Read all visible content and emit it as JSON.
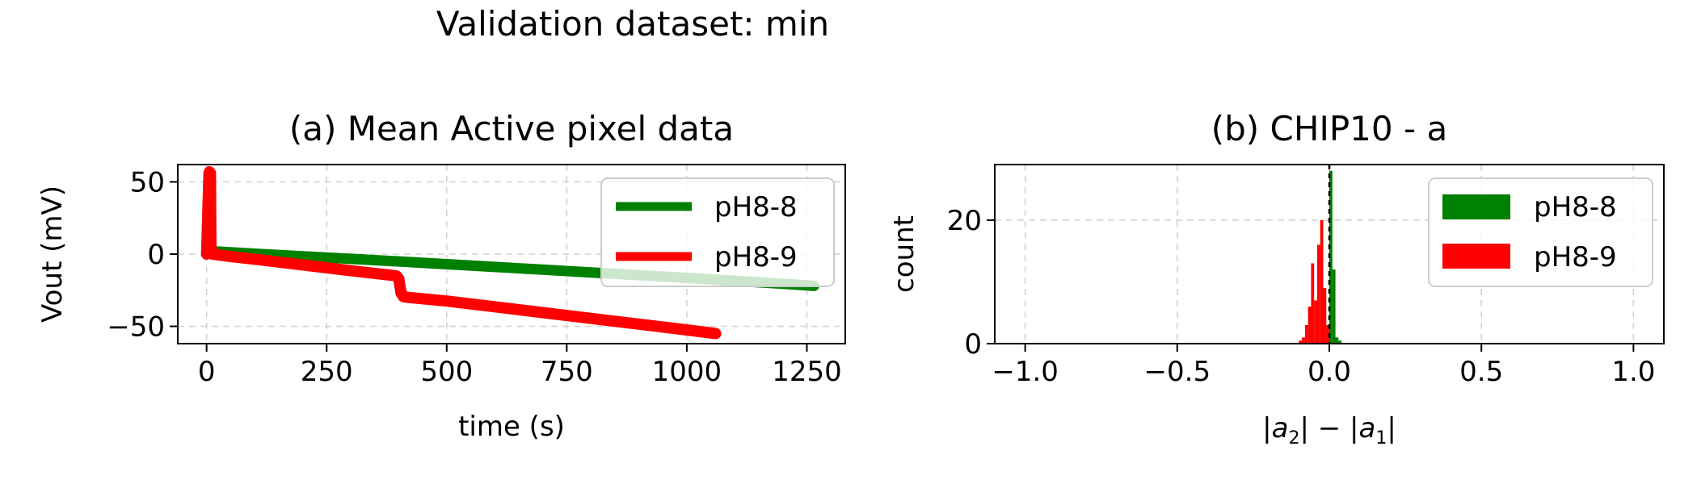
{
  "suptitle": "Validation dataset: min",
  "chart_data": [
    {
      "type": "line",
      "title": "(a) Mean Active pixel data",
      "xlabel": "time (s)",
      "ylabel": "Vout (mV)",
      "xlim": [
        -60,
        1330
      ],
      "ylim": [
        -62,
        62
      ],
      "xticks": [
        0,
        250,
        500,
        750,
        1000,
        1250
      ],
      "xtick_labels": [
        "0",
        "250",
        "500",
        "750",
        "1000",
        "1250"
      ],
      "yticks": [
        -50,
        0,
        50
      ],
      "ytick_labels": [
        "−50",
        "0",
        "50"
      ],
      "grid": true,
      "legend_position": "upper right",
      "series": [
        {
          "name": "pH8-8",
          "color": "#008000",
          "x": [
            0,
            5,
            10,
            100,
            200,
            300,
            400,
            500,
            600,
            700,
            800,
            900,
            1000,
            1100,
            1200,
            1265
          ],
          "y": [
            0,
            3,
            2,
            0.3,
            -1.5,
            -3.3,
            -5.1,
            -7.0,
            -8.9,
            -10.8,
            -12.7,
            -14.6,
            -16.5,
            -18.5,
            -20.5,
            -22.0
          ]
        },
        {
          "name": "pH8-9",
          "color": "#ff0000",
          "x": [
            0,
            5,
            6,
            8,
            9,
            12,
            50,
            100,
            200,
            300,
            395,
            400,
            405,
            410,
            420,
            500,
            600,
            700,
            800,
            900,
            1000,
            1060
          ],
          "y": [
            0,
            56,
            57,
            56,
            2,
            0,
            -1.7,
            -3.5,
            -7.5,
            -11.5,
            -15.0,
            -17.0,
            -27.0,
            -29.5,
            -30.0,
            -32.5,
            -36.5,
            -40.5,
            -44.5,
            -48.5,
            -52.5,
            -55.0
          ]
        }
      ]
    },
    {
      "type": "bar",
      "title": "(b) CHIP10 - a",
      "xlabel": "|a2| − |a1|",
      "ylabel": "count",
      "xlim": [
        -1.1,
        1.1
      ],
      "ylim": [
        0,
        29
      ],
      "xticks": [
        -1.0,
        -0.5,
        0.0,
        0.5,
        1.0
      ],
      "xtick_labels": [
        "−1.0",
        "−0.5",
        "0.0",
        "0.5",
        "1.0"
      ],
      "yticks": [
        0,
        20
      ],
      "ytick_labels": [
        "0",
        "20"
      ],
      "grid": true,
      "legend_position": "upper right",
      "vline": 0.0,
      "bin_width": 0.01,
      "series": [
        {
          "name": "pH8-8",
          "color": "#008000",
          "bins": [
            -0.01,
            0.0,
            0.01,
            0.02,
            0.03
          ],
          "values": [
            3,
            28,
            12,
            1,
            0.5
          ]
        },
        {
          "name": "pH8-9",
          "color": "#ff0000",
          "bins": [
            -0.1,
            -0.09,
            -0.08,
            -0.07,
            -0.06,
            -0.05,
            -0.04,
            -0.03,
            -0.02,
            -0.01
          ],
          "values": [
            0.5,
            1,
            3,
            6,
            13,
            7,
            16,
            20,
            9,
            3
          ]
        }
      ]
    }
  ]
}
